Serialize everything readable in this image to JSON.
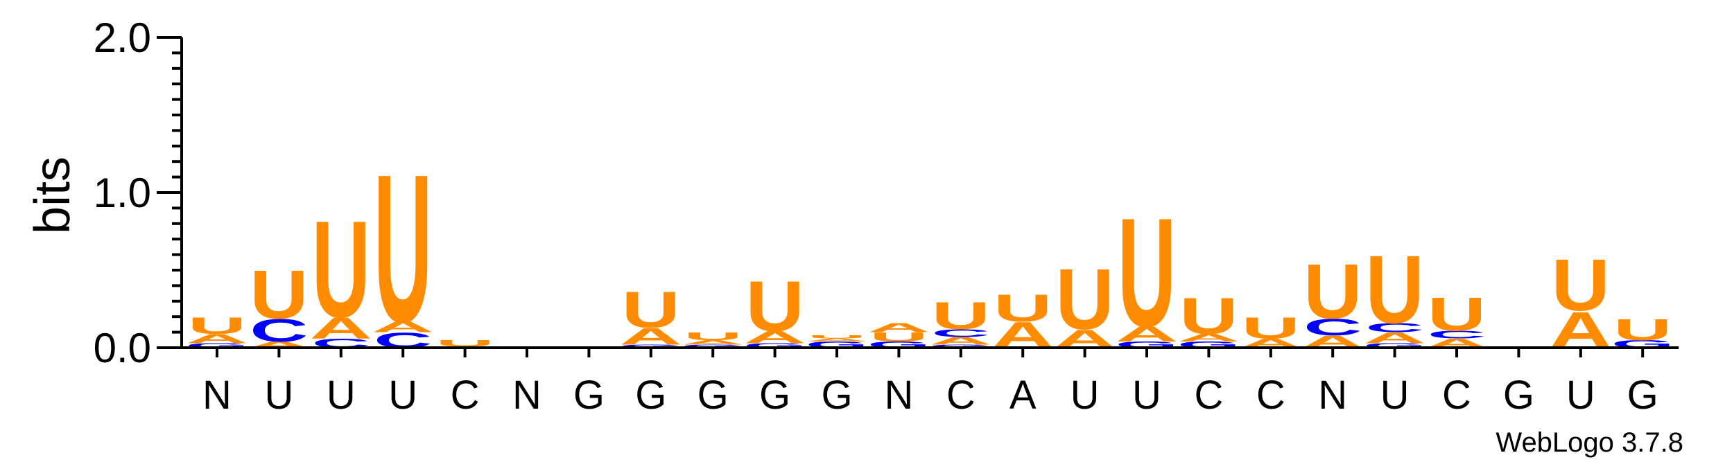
{
  "chart_data": {
    "type": "sequence-logo",
    "ylabel": "bits",
    "ylim": [
      0,
      2.0
    ],
    "yticks": [
      "0.0",
      "1.0",
      "2.0"
    ],
    "colors": {
      "U": "#FF8C00",
      "A": "#FF8C00",
      "C": "#0000FF",
      "G": "#0000FF"
    },
    "positions": [
      {
        "label": "N",
        "stack": [
          [
            "G",
            0.03
          ],
          [
            "A",
            0.06
          ],
          [
            "U",
            0.11
          ]
        ]
      },
      {
        "label": "U",
        "stack": [
          [
            "A",
            0.04
          ],
          [
            "C",
            0.15
          ],
          [
            "U",
            0.32
          ]
        ]
      },
      {
        "label": "U",
        "stack": [
          [
            "C",
            0.06
          ],
          [
            "A",
            0.14
          ],
          [
            "U",
            0.64
          ]
        ]
      },
      {
        "label": "U",
        "stack": [
          [
            "C",
            0.1
          ],
          [
            "A",
            0.07
          ],
          [
            "U",
            0.98
          ]
        ]
      },
      {
        "label": "C",
        "stack": [
          [
            "G",
            0.01
          ],
          [
            "U",
            0.04
          ]
        ]
      },
      {
        "label": "N",
        "stack": []
      },
      {
        "label": "G",
        "stack": []
      },
      {
        "label": "G",
        "stack": [
          [
            "G",
            0.02
          ],
          [
            "A",
            0.11
          ],
          [
            "U",
            0.24
          ]
        ]
      },
      {
        "label": "G",
        "stack": [
          [
            "G",
            0.02
          ],
          [
            "A",
            0.03
          ],
          [
            "U",
            0.05
          ]
        ]
      },
      {
        "label": "G",
        "stack": [
          [
            "G",
            0.03
          ],
          [
            "A",
            0.08
          ],
          [
            "U",
            0.33
          ]
        ]
      },
      {
        "label": "G",
        "stack": [
          [
            "G",
            0.04
          ],
          [
            "A",
            0.02
          ],
          [
            "U",
            0.02
          ]
        ]
      },
      {
        "label": "N",
        "stack": [
          [
            "G",
            0.04
          ],
          [
            "U",
            0.06
          ],
          [
            "A",
            0.06
          ]
        ]
      },
      {
        "label": "C",
        "stack": [
          [
            "G",
            0.02
          ],
          [
            "A",
            0.05
          ],
          [
            "C",
            0.05
          ],
          [
            "U",
            0.18
          ]
        ]
      },
      {
        "label": "A",
        "stack": [
          [
            "A",
            0.17
          ],
          [
            "U",
            0.18
          ]
        ]
      },
      {
        "label": "U",
        "stack": [
          [
            "A",
            0.12
          ],
          [
            "U",
            0.4
          ]
        ]
      },
      {
        "label": "U",
        "stack": [
          [
            "G",
            0.04
          ],
          [
            "A",
            0.1
          ],
          [
            "U",
            0.72
          ]
        ]
      },
      {
        "label": "C",
        "stack": [
          [
            "G",
            0.04
          ],
          [
            "A",
            0.05
          ],
          [
            "U",
            0.24
          ]
        ]
      },
      {
        "label": "C",
        "stack": [
          [
            "A",
            0.06
          ],
          [
            "U",
            0.14
          ]
        ]
      },
      {
        "label": "N",
        "stack": [
          [
            "A",
            0.08
          ],
          [
            "C",
            0.11
          ],
          [
            "U",
            0.36
          ]
        ]
      },
      {
        "label": "U",
        "stack": [
          [
            "G",
            0.03
          ],
          [
            "A",
            0.07
          ],
          [
            "C",
            0.06
          ],
          [
            "U",
            0.45
          ]
        ]
      },
      {
        "label": "C",
        "stack": [
          [
            "A",
            0.06
          ],
          [
            "C",
            0.05
          ],
          [
            "U",
            0.22
          ]
        ]
      },
      {
        "label": "G",
        "stack": []
      },
      {
        "label": "U",
        "stack": [
          [
            "A",
            0.24
          ],
          [
            "U",
            0.34
          ]
        ]
      },
      {
        "label": "G",
        "stack": [
          [
            "G",
            0.05
          ],
          [
            "U",
            0.14
          ]
        ]
      }
    ],
    "credit": "WebLogo 3.7.8"
  }
}
